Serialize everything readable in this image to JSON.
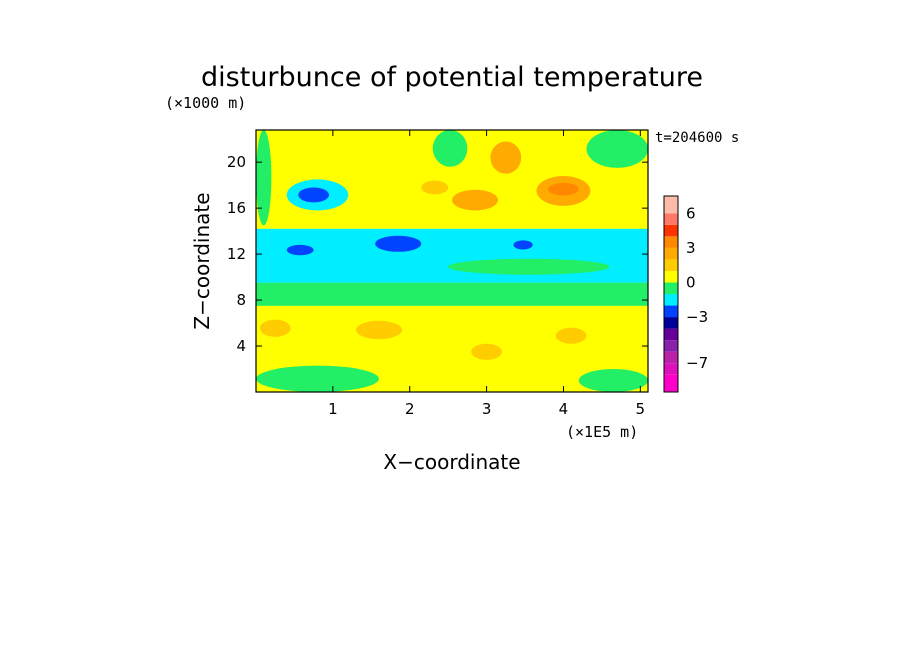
{
  "chart_data": {
    "type": "heatmap",
    "title": "disturbunce of potential temperature",
    "y_unit": "(×1000 m)",
    "x_unit": "(×1E5 m)",
    "xlabel": "X−coordinate",
    "ylabel": "Z−coordinate",
    "time_label": "t=204600 s",
    "xlim": [
      0,
      5.1
    ],
    "ylim": [
      0,
      22.8
    ],
    "x_ticks": [
      1,
      2,
      3,
      4,
      5
    ],
    "y_ticks": [
      4,
      8,
      12,
      16,
      20
    ],
    "grid": false,
    "colorbar": {
      "range": [
        -9.5,
        7.5
      ],
      "tick_values": [
        6,
        3,
        0,
        -3,
        -7
      ],
      "tick_labels": [
        "6",
        "3",
        "0",
        "−3",
        "−7"
      ],
      "levels": [
        {
          "from": -9.5,
          "to": -8,
          "color": "#ff00cc"
        },
        {
          "from": -8,
          "to": -7,
          "color": "#dd11bb"
        },
        {
          "from": -7,
          "to": -6,
          "color": "#bb22aa"
        },
        {
          "from": -6,
          "to": -5,
          "color": "#8822aa"
        },
        {
          "from": -5,
          "to": -4,
          "color": "#660099"
        },
        {
          "from": -4,
          "to": -3,
          "color": "#000099"
        },
        {
          "from": -3,
          "to": -2,
          "color": "#0044ff"
        },
        {
          "from": -2,
          "to": -1,
          "color": "#00eeff"
        },
        {
          "from": -1,
          "to": 0,
          "color": "#22ee66"
        },
        {
          "from": 0,
          "to": 1,
          "color": "#ffff00"
        },
        {
          "from": 1,
          "to": 2,
          "color": "#ffcc00"
        },
        {
          "from": 2,
          "to": 3,
          "color": "#ffaa00"
        },
        {
          "from": 3,
          "to": 4,
          "color": "#ff8800"
        },
        {
          "from": 4,
          "to": 5,
          "color": "#ff3300"
        },
        {
          "from": 5,
          "to": 6,
          "color": "#ff7766"
        },
        {
          "from": 6,
          "to": 7.5,
          "color": "#ffbbaa"
        }
      ]
    },
    "regions": [
      {
        "x0": 0,
        "x1": 5.1,
        "y0": 0,
        "y1": 22.8,
        "value": 0.5
      },
      {
        "x0": 0,
        "x1": 5.1,
        "y0": 7.5,
        "y1": 9.5,
        "value": -0.5
      },
      {
        "x0": 0,
        "x1": 5.1,
        "y0": 9.5,
        "y1": 14.2,
        "value": -1.5
      },
      {
        "x0": 0.4,
        "x1": 1.2,
        "y0": 15.8,
        "y1": 18.5,
        "value": -1.5
      },
      {
        "x0": 0.55,
        "x1": 0.95,
        "y0": 16.5,
        "y1": 17.8,
        "value": -2.5
      },
      {
        "x0": 1.55,
        "x1": 2.15,
        "y0": 12.2,
        "y1": 13.6,
        "value": -2.5
      },
      {
        "x0": 0.4,
        "x1": 0.75,
        "y0": 11.9,
        "y1": 12.8,
        "value": -2.5
      },
      {
        "x0": 3.35,
        "x1": 3.6,
        "y0": 12.4,
        "y1": 13.2,
        "value": -2.5
      },
      {
        "x0": 0.05,
        "x1": 0.45,
        "y0": 4.8,
        "y1": 6.3,
        "value": 1.5
      },
      {
        "x0": 1.3,
        "x1": 1.9,
        "y0": 4.6,
        "y1": 6.2,
        "value": 1.5
      },
      {
        "x0": 2.8,
        "x1": 3.2,
        "y0": 2.8,
        "y1": 4.2,
        "value": 1.5
      },
      {
        "x0": 3.9,
        "x1": 4.3,
        "y0": 4.2,
        "y1": 5.6,
        "value": 1.5
      },
      {
        "x0": 0,
        "x1": 1.6,
        "y0": 0,
        "y1": 2.3,
        "value": -0.5
      },
      {
        "x0": 4.2,
        "x1": 5.1,
        "y0": 0,
        "y1": 2.0,
        "value": -0.5
      },
      {
        "x0": 2.5,
        "x1": 4.6,
        "y0": 10.2,
        "y1": 11.6,
        "value": -0.5
      },
      {
        "x0": 2.55,
        "x1": 3.15,
        "y0": 15.8,
        "y1": 17.6,
        "value": 2.5
      },
      {
        "x0": 3.05,
        "x1": 3.45,
        "y0": 19.0,
        "y1": 21.8,
        "value": 2.5
      },
      {
        "x0": 3.65,
        "x1": 4.35,
        "y0": 16.2,
        "y1": 18.8,
        "value": 2.5
      },
      {
        "x0": 3.8,
        "x1": 4.2,
        "y0": 17.1,
        "y1": 18.2,
        "value": 3.5
      },
      {
        "x0": 2.15,
        "x1": 2.5,
        "y0": 17.2,
        "y1": 18.4,
        "value": 1.5
      },
      {
        "x0": 4.3,
        "x1": 5.1,
        "y0": 19.5,
        "y1": 22.8,
        "value": -0.5
      },
      {
        "x0": 2.3,
        "x1": 2.75,
        "y0": 19.6,
        "y1": 22.8,
        "value": -0.5
      },
      {
        "x0": 0,
        "x1": 0.2,
        "y0": 14.5,
        "y1": 22.8,
        "value": -0.5
      }
    ]
  }
}
